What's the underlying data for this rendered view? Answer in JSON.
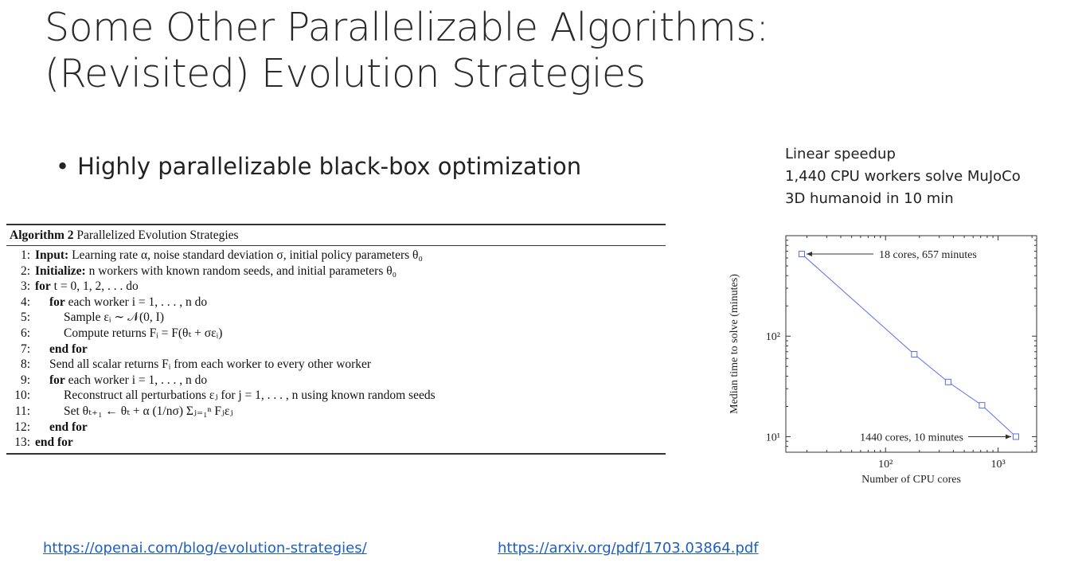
{
  "slide": {
    "title_line1": "Some Other Parallelizable Algorithms:",
    "title_line2": "(Revisited) Evolution Strategies",
    "bullet": "Highly parallelizable black-box optimization",
    "caption_line1": "Linear speedup",
    "caption_line2": "1,440 CPU workers solve MuJoCo",
    "caption_line3": "3D humanoid in 10 min"
  },
  "algorithm": {
    "label": "Algorithm 2",
    "name": "Parallelized Evolution Strategies",
    "lines": [
      {
        "n": "1:",
        "kw": "Input:",
        "text": " Learning rate α, noise standard deviation σ, initial policy parameters θ₀",
        "indent": 0
      },
      {
        "n": "2:",
        "kw": "Initialize:",
        "text": " n workers with known random seeds, and initial parameters θ₀",
        "indent": 0
      },
      {
        "n": "3:",
        "kw": "for",
        "text": " t = 0, 1, 2, . . .  do",
        "indent": 0
      },
      {
        "n": "4:",
        "kw": "for",
        "text": " each worker i = 1, . . . , n do",
        "indent": 1
      },
      {
        "n": "5:",
        "kw": "",
        "text": "Sample εᵢ ∼ 𝒩(0, I)",
        "indent": 2
      },
      {
        "n": "6:",
        "kw": "",
        "text": "Compute returns Fᵢ = F(θₜ + σεᵢ)",
        "indent": 2
      },
      {
        "n": "7:",
        "kw": "end for",
        "text": "",
        "indent": 1
      },
      {
        "n": "8:",
        "kw": "",
        "text": "Send all scalar returns Fᵢ from each worker to every other worker",
        "indent": 1
      },
      {
        "n": "9:",
        "kw": "for",
        "text": " each worker i = 1, . . . , n do",
        "indent": 1
      },
      {
        "n": "10:",
        "kw": "",
        "text": "Reconstruct all perturbations εⱼ for j = 1, . . . , n using known random seeds",
        "indent": 2
      },
      {
        "n": "11:",
        "kw": "",
        "text": "Set θₜ₊₁ ← θₜ + α (1/nσ) Σⱼ₌₁ⁿ Fⱼεⱼ",
        "indent": 2
      },
      {
        "n": "12:",
        "kw": "end for",
        "text": "",
        "indent": 1
      },
      {
        "n": "13:",
        "kw": "end for",
        "text": "",
        "indent": 0
      }
    ]
  },
  "chart_data": {
    "type": "line",
    "x": [
      18,
      180,
      360,
      720,
      1440
    ],
    "y": [
      657,
      66,
      35,
      20.5,
      10
    ],
    "xlabel": "Number of CPU cores",
    "ylabel": "Median time to solve (minutes)",
    "x_scale": "log",
    "y_scale": "log",
    "xlim": [
      13,
      2200
    ],
    "ylim": [
      7,
      1000
    ],
    "x_ticks": [
      "10²",
      "10³"
    ],
    "y_ticks": [
      "10²",
      "10¹"
    ],
    "annotations": [
      "18 cores, 657 minutes",
      "1440 cores, 10 minutes"
    ],
    "line_color": "#5b6ef0",
    "grid": false
  },
  "links": {
    "link1": "https://openai.com/blog/evolution-strategies/",
    "link2": "https://arxiv.org/pdf/1703.03864.pdf"
  }
}
